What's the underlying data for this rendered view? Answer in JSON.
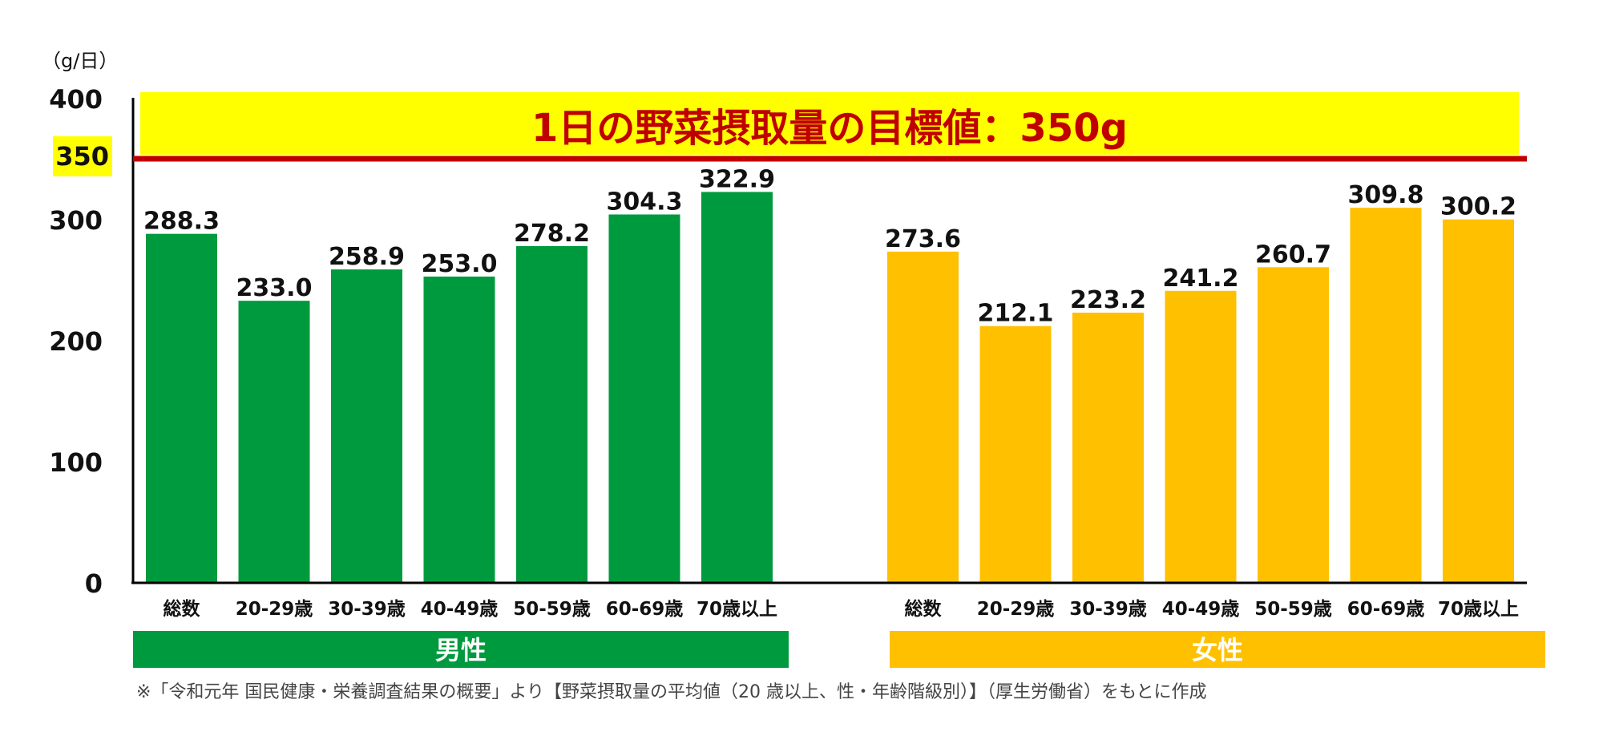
{
  "chart_data": {
    "type": "bar",
    "unit_label": "（g/日）",
    "ylim": [
      0,
      400
    ],
    "yticks": [
      "0",
      "100",
      "200",
      "300",
      "400"
    ],
    "target": {
      "value": 350,
      "label": "350",
      "text": "1日の野菜摂取量の目標値：350g"
    },
    "categories": [
      "総数",
      "20-29歳",
      "30-39歳",
      "40-49歳",
      "50-59歳",
      "60-69歳",
      "70歳以上"
    ],
    "series": [
      {
        "name": "男性",
        "color": "#009a3e",
        "values": [
          288.3,
          233.0,
          258.9,
          253.0,
          278.2,
          304.3,
          322.9
        ],
        "labels": [
          "288.3",
          "233.0",
          "258.9",
          "253.0",
          "278.2",
          "304.3",
          "322.9"
        ]
      },
      {
        "name": "女性",
        "color": "#ffc000",
        "values": [
          273.6,
          212.1,
          223.2,
          241.2,
          260.7,
          309.8,
          300.2
        ],
        "labels": [
          "273.6",
          "212.1",
          "223.2",
          "241.2",
          "260.7",
          "309.8",
          "300.2"
        ]
      }
    ],
    "colors": {
      "target_line": "#c00000",
      "target_band": "#ffff00",
      "target_text": "#c00000"
    },
    "source": "※「令和元年 国民健康・栄養調査結果の概要」より【野菜摂取量の平均値（20 歳以上、性・年齢階級別）】（厚生労働省）をもとに作成"
  }
}
